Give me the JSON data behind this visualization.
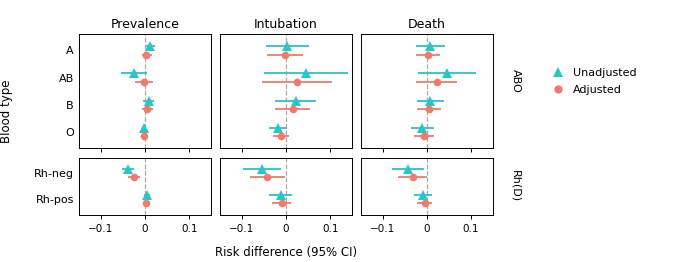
{
  "panels": [
    "Prevalence",
    "Intubation",
    "Death"
  ],
  "abo_labels": [
    "A",
    "AB",
    "B",
    "O"
  ],
  "rh_labels": [
    "Rh-neg",
    "Rh-pos"
  ],
  "unadjusted_color": "#29C5C8",
  "adjusted_color": "#F07B6A",
  "dashed_color": "#AAAAAA",
  "strip_bg": "#CCCCCC",
  "abo_unadjusted": {
    "Prevalence": {
      "A": {
        "est": 0.012,
        "lo": 0.002,
        "hi": 0.022
      },
      "AB": {
        "est": -0.025,
        "lo": -0.055,
        "hi": 0.005
      },
      "B": {
        "est": 0.008,
        "lo": -0.005,
        "hi": 0.02
      },
      "O": {
        "est": -0.003,
        "lo": -0.008,
        "hi": 0.002
      }
    },
    "Intubation": {
      "A": {
        "est": 0.003,
        "lo": -0.045,
        "hi": 0.052
      },
      "AB": {
        "est": 0.045,
        "lo": -0.05,
        "hi": 0.14
      },
      "B": {
        "est": 0.022,
        "lo": -0.025,
        "hi": 0.068
      },
      "O": {
        "est": -0.018,
        "lo": -0.038,
        "hi": 0.002
      }
    },
    "Death": {
      "A": {
        "est": 0.008,
        "lo": -0.025,
        "hi": 0.04
      },
      "AB": {
        "est": 0.045,
        "lo": -0.02,
        "hi": 0.11
      },
      "B": {
        "est": 0.008,
        "lo": -0.022,
        "hi": 0.038
      },
      "O": {
        "est": -0.01,
        "lo": -0.035,
        "hi": 0.015
      }
    }
  },
  "abo_adjusted": {
    "Prevalence": {
      "A": {
        "est": 0.003,
        "lo": -0.008,
        "hi": 0.015
      },
      "AB": {
        "est": -0.002,
        "lo": -0.022,
        "hi": 0.018
      },
      "B": {
        "est": 0.005,
        "lo": -0.008,
        "hi": 0.018
      },
      "O": {
        "est": -0.002,
        "lo": -0.008,
        "hi": 0.004
      }
    },
    "Intubation": {
      "A": {
        "est": -0.002,
        "lo": -0.042,
        "hi": 0.038
      },
      "AB": {
        "est": 0.025,
        "lo": -0.055,
        "hi": 0.105
      },
      "B": {
        "est": 0.015,
        "lo": -0.025,
        "hi": 0.055
      },
      "O": {
        "est": -0.012,
        "lo": -0.03,
        "hi": 0.006
      }
    },
    "Death": {
      "A": {
        "est": 0.003,
        "lo": -0.025,
        "hi": 0.03
      },
      "AB": {
        "est": 0.022,
        "lo": -0.025,
        "hi": 0.068
      },
      "B": {
        "est": 0.005,
        "lo": -0.022,
        "hi": 0.032
      },
      "O": {
        "est": -0.006,
        "lo": -0.028,
        "hi": 0.016
      }
    }
  },
  "rh_unadjusted": {
    "Prevalence": {
      "Rh-neg": {
        "est": -0.038,
        "lo": -0.052,
        "hi": -0.024
      },
      "Rh-pos": {
        "est": 0.004,
        "lo": -0.003,
        "hi": 0.011
      }
    },
    "Intubation": {
      "Rh-neg": {
        "est": -0.055,
        "lo": -0.098,
        "hi": -0.012
      },
      "Rh-pos": {
        "est": -0.012,
        "lo": -0.038,
        "hi": 0.014
      }
    },
    "Death": {
      "Rh-neg": {
        "est": -0.042,
        "lo": -0.078,
        "hi": -0.006
      },
      "Rh-pos": {
        "est": -0.008,
        "lo": -0.028,
        "hi": 0.012
      }
    }
  },
  "rh_adjusted": {
    "Prevalence": {
      "Rh-neg": {
        "est": -0.025,
        "lo": -0.038,
        "hi": -0.012
      },
      "Rh-pos": {
        "est": 0.002,
        "lo": -0.004,
        "hi": 0.008
      }
    },
    "Intubation": {
      "Rh-neg": {
        "est": -0.042,
        "lo": -0.082,
        "hi": -0.002
      },
      "Rh-pos": {
        "est": -0.01,
        "lo": -0.032,
        "hi": 0.012
      }
    },
    "Death": {
      "Rh-neg": {
        "est": -0.032,
        "lo": -0.065,
        "hi": 0.001
      },
      "Rh-pos": {
        "est": -0.005,
        "lo": -0.022,
        "hi": 0.012
      }
    }
  },
  "xlim": [
    -0.15,
    0.15
  ],
  "xticks": [
    -0.1,
    0.0,
    0.1
  ],
  "xticklabels": [
    "−0.1",
    "0",
    "0.1"
  ],
  "xlabel": "Risk difference (95% CI)",
  "ylabel": "Blood type",
  "strip_abo": "ABO",
  "strip_rh": "Rh(D)",
  "legend_labels": [
    "Unadjusted",
    "Adjusted"
  ]
}
